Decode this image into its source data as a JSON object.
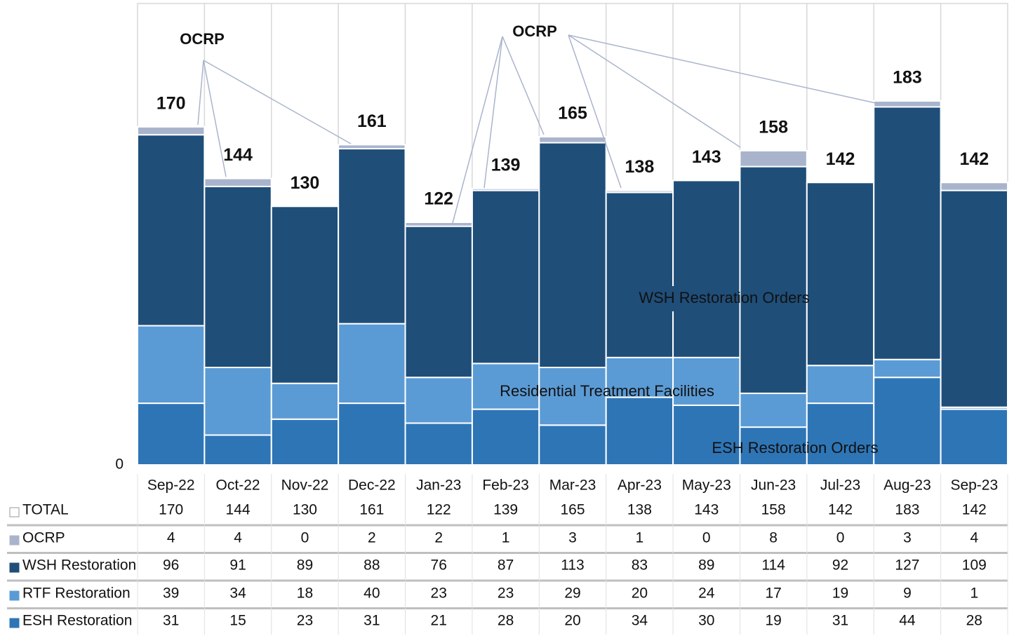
{
  "chart_data": {
    "type": "bar",
    "stacked": true,
    "categories": [
      "Sep-22",
      "Oct-22",
      "Nov-22",
      "Dec-22",
      "Jan-23",
      "Feb-23",
      "Mar-23",
      "Apr-23",
      "May-23",
      "Jun-23",
      "Jul-23",
      "Aug-23",
      "Sep-23"
    ],
    "series": [
      {
        "name": "TOTAL",
        "color": "#ffffff",
        "values": [
          170,
          144,
          130,
          161,
          122,
          139,
          165,
          138,
          143,
          158,
          142,
          183,
          142
        ]
      },
      {
        "name": "OCRP",
        "color": "#a9b4cc",
        "values": [
          4,
          4,
          0,
          2,
          2,
          1,
          3,
          1,
          0,
          8,
          0,
          3,
          4
        ]
      },
      {
        "name": "WSH Restoration",
        "color": "#1f4e79",
        "values": [
          96,
          91,
          89,
          88,
          76,
          87,
          113,
          83,
          89,
          114,
          92,
          127,
          109
        ]
      },
      {
        "name": "RTF Restoration",
        "color": "#5b9bd5",
        "values": [
          39,
          34,
          18,
          40,
          23,
          23,
          29,
          20,
          24,
          17,
          19,
          9,
          1
        ]
      },
      {
        "name": "ESH Restoration",
        "color": "#2e75b6",
        "values": [
          31,
          15,
          23,
          31,
          21,
          28,
          20,
          34,
          30,
          19,
          31,
          44,
          28
        ]
      }
    ],
    "ylim": [
      0,
      232
    ],
    "yticks": [
      0
    ],
    "annotations": [
      "OCRP",
      "OCRP",
      "WSH Restoration Orders",
      "Residential Treatment Facilities",
      "ESH Restoration Orders"
    ]
  }
}
